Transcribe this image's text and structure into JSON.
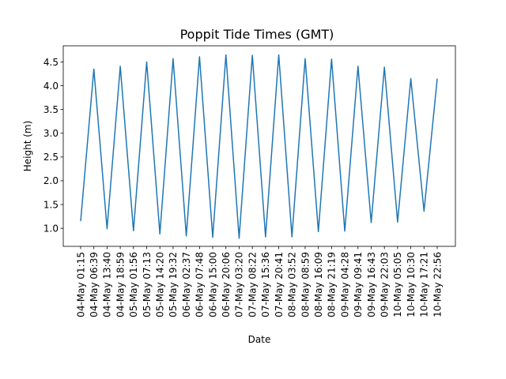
{
  "chart_data": {
    "type": "line",
    "title": "Poppit Tide Times (GMT)",
    "xlabel": "Date",
    "ylabel": "Height (m)",
    "ylim": [
      0.62,
      4.84
    ],
    "yticks": [
      "1.0",
      "1.5",
      "2.0",
      "2.5",
      "3.0",
      "3.5",
      "4.0",
      "4.5"
    ],
    "ytick_values": [
      1.0,
      1.5,
      2.0,
      2.5,
      3.0,
      3.5,
      4.0,
      4.5
    ],
    "grid": false,
    "line_color": "#1f77b4",
    "categories": [
      "04-May 01:15",
      "04-May 06:39",
      "04-May 13:40",
      "04-May 18:59",
      "05-May 01:56",
      "05-May 07:13",
      "05-May 14:20",
      "05-May 19:32",
      "06-May 02:37",
      "06-May 07:48",
      "06-May 15:00",
      "06-May 20:06",
      "07-May 03:20",
      "07-May 08:22",
      "07-May 15:36",
      "07-May 20:41",
      "08-May 03:52",
      "08-May 08:59",
      "08-May 16:09",
      "08-May 21:19",
      "09-May 04:28",
      "09-May 09:41",
      "09-May 16:43",
      "09-May 22:03",
      "10-May 05:05",
      "10-May 10:30",
      "10-May 17:21",
      "10-May 22:56"
    ],
    "series": [
      {
        "values": [
          1.15,
          4.35,
          0.99,
          4.41,
          0.95,
          4.5,
          0.88,
          4.57,
          0.84,
          4.61,
          0.81,
          4.65,
          0.79,
          4.64,
          0.82,
          4.65,
          0.82,
          4.57,
          0.93,
          4.56,
          0.94,
          4.41,
          1.12,
          4.39,
          1.13,
          4.15,
          1.36,
          4.15
        ]
      }
    ]
  }
}
